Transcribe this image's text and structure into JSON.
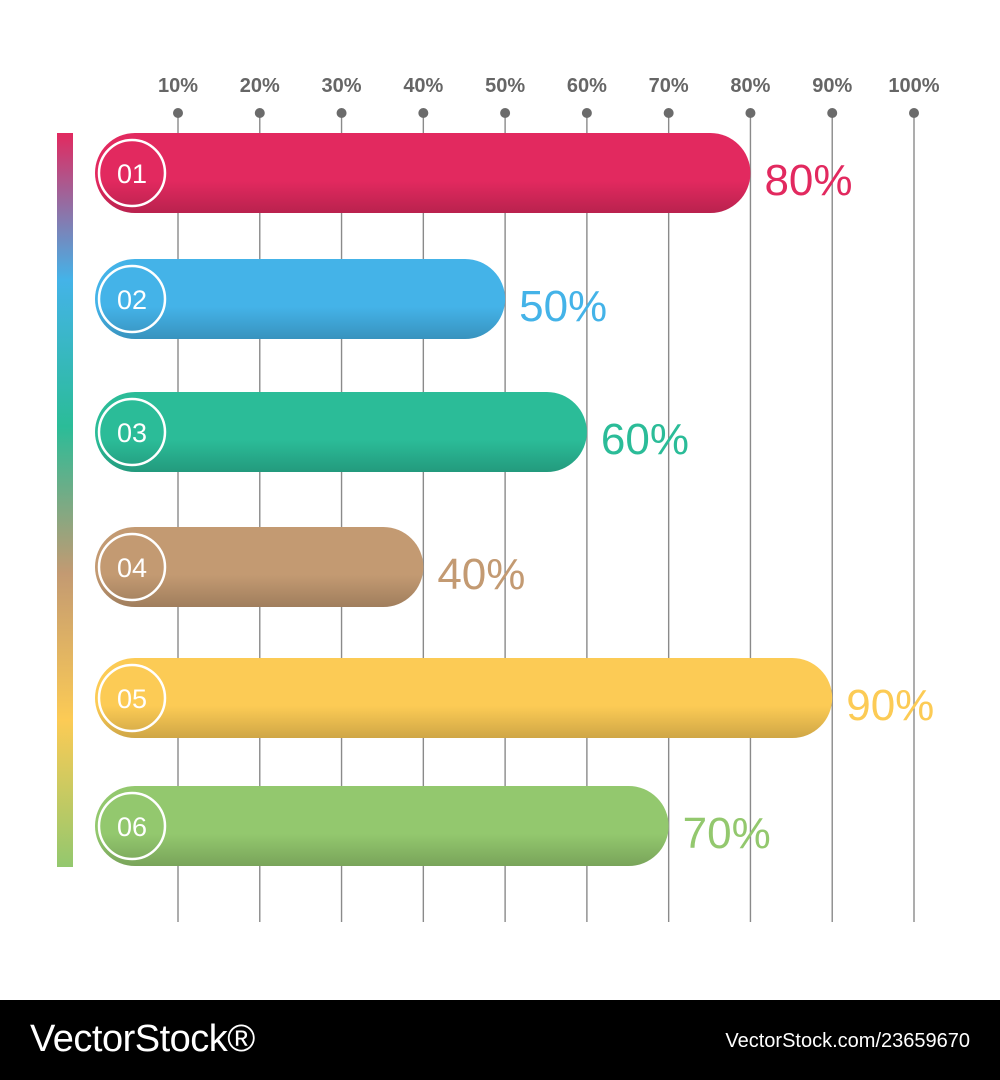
{
  "chart_data": {
    "type": "bar",
    "orientation": "horizontal",
    "categories": [
      "01",
      "02",
      "03",
      "04",
      "05",
      "06"
    ],
    "values": [
      80,
      50,
      60,
      40,
      90,
      70
    ],
    "value_labels": [
      "80%",
      "50%",
      "60%",
      "40%",
      "90%",
      "70%"
    ],
    "bar_colors": [
      "#e2295f",
      "#44b3e8",
      "#2bbc98",
      "#c39a72",
      "#fccb55",
      "#93c86e"
    ],
    "label_colors": [
      "#e2295f",
      "#44b3e8",
      "#2bbc98",
      "#c39a72",
      "#fccb55",
      "#93c86e"
    ],
    "x_ticks": [
      "10%",
      "20%",
      "30%",
      "40%",
      "50%",
      "60%",
      "70%",
      "80%",
      "90%",
      "100%"
    ],
    "x_tick_values": [
      10,
      20,
      30,
      40,
      50,
      60,
      70,
      80,
      90,
      100
    ],
    "xlim": [
      0,
      100
    ],
    "xlabel": "",
    "ylabel": "",
    "title": "",
    "grid": true,
    "legend": false
  },
  "watermark": {
    "brand": "VectorStock®",
    "image_id": "VectorStock.com/23659670"
  }
}
